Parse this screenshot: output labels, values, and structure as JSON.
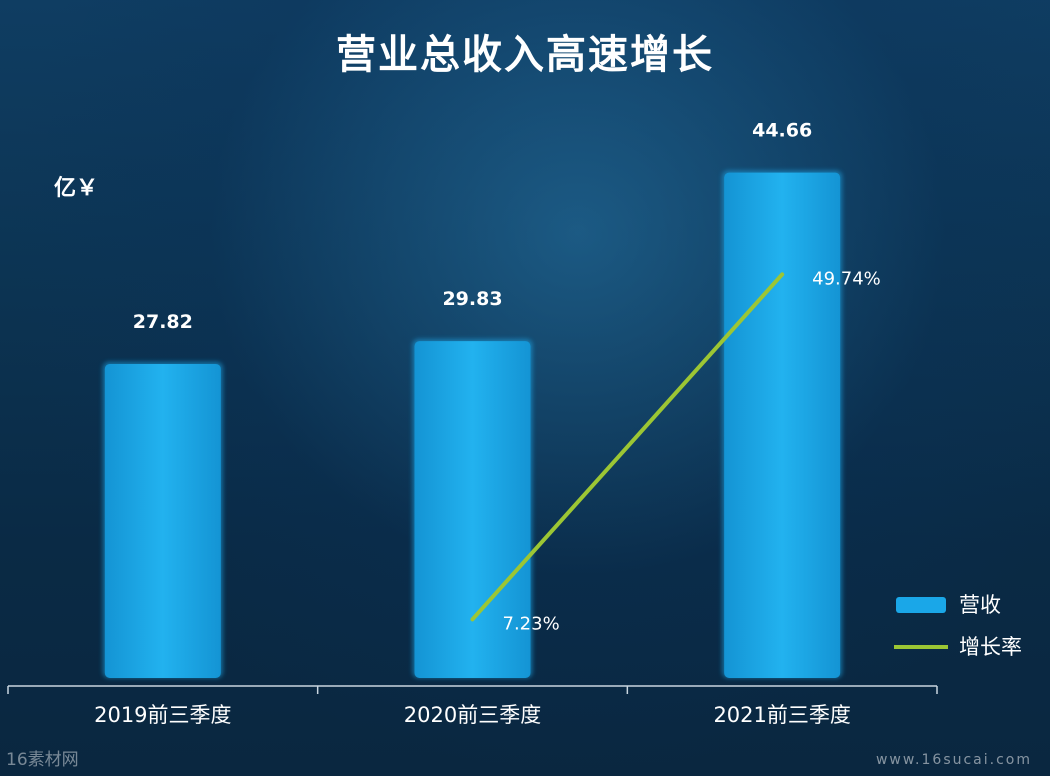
{
  "title": "营业总收入高速增长",
  "unit_label": "亿￥",
  "watermark": {
    "left": "16素材网",
    "right": "www.16sucai.com"
  },
  "colors": {
    "bar": "#1aa7e8",
    "line": "#9cc634"
  },
  "chart_data": {
    "type": "bar",
    "categories": [
      "2019前三季度",
      "2020前三季度",
      "2021前三季度"
    ],
    "series": [
      {
        "name": "营收",
        "kind": "bar",
        "values": [
          27.82,
          29.83,
          44.66
        ],
        "labels": [
          "27.82",
          "29.83",
          "44.66"
        ]
      },
      {
        "name": "增长率",
        "kind": "line",
        "axis": "secondary",
        "values": [
          null,
          7.23,
          49.74
        ],
        "labels": [
          "",
          "7.23%",
          "49.74%"
        ]
      }
    ],
    "legend_position": "right",
    "title": "营业总收入高速增长",
    "ylabel": "亿￥",
    "ylim": [
      0,
      50
    ],
    "ylim_secondary": [
      0,
      70
    ],
    "grid": false
  }
}
